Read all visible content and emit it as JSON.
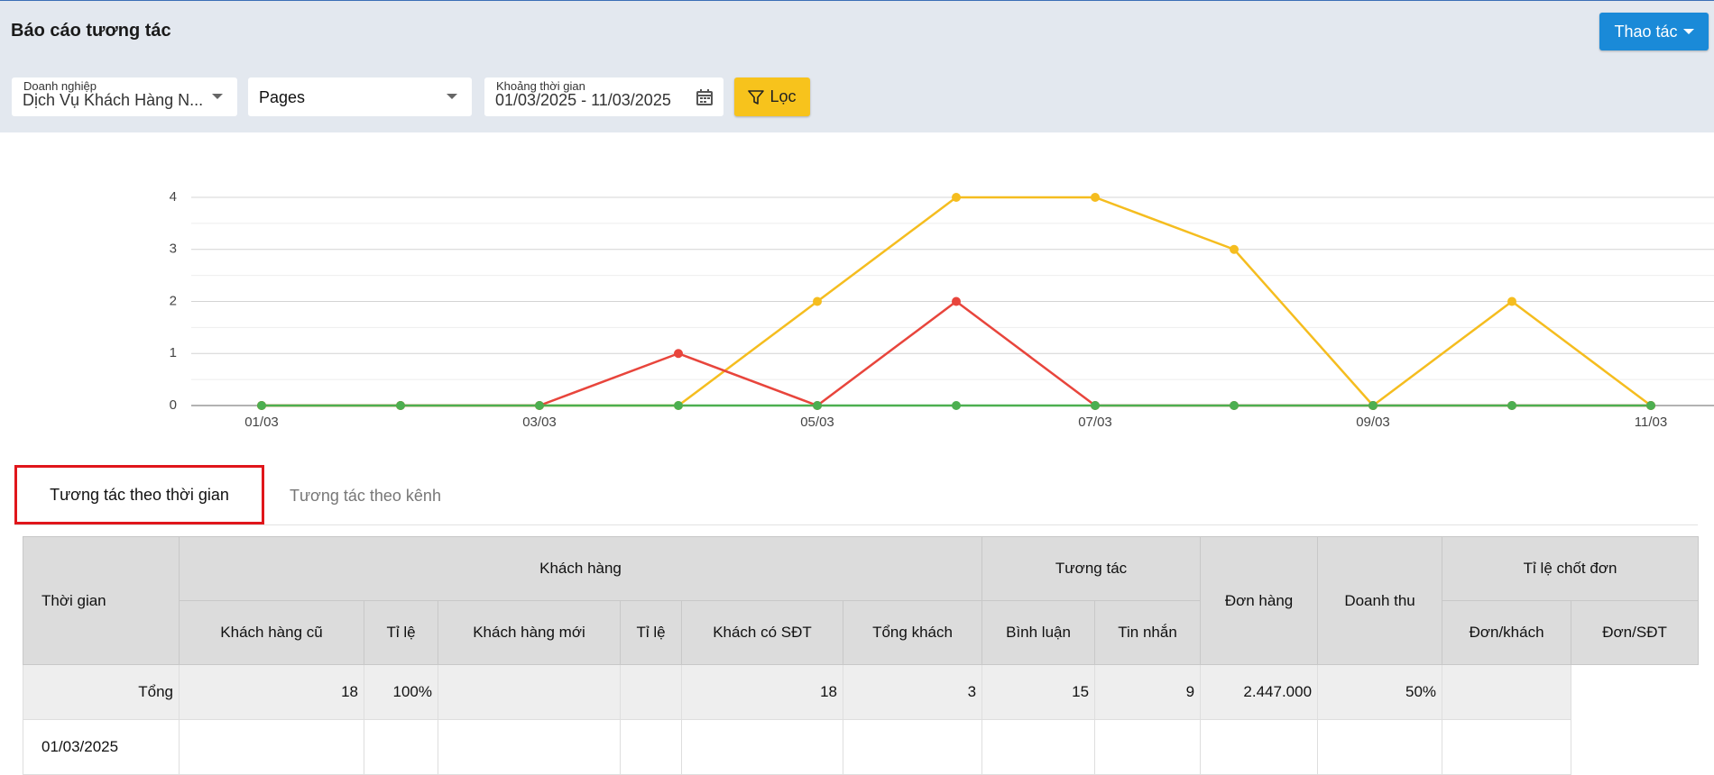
{
  "header": {
    "title": "Báo cáo tương tác",
    "action_button": "Thao tác"
  },
  "filters": {
    "company": {
      "label": "Doanh nghiệp",
      "value": "Dịch Vụ Khách Hàng N..."
    },
    "source": {
      "value": "Pages"
    },
    "date_range": {
      "label": "Khoảng thời gian",
      "value": "01/03/2025 - 11/03/2025"
    },
    "filter_button": "Lọc"
  },
  "chart_data": {
    "type": "line",
    "categories": [
      "01/03",
      null,
      "03/03",
      null,
      "05/03",
      null,
      "07/03",
      null,
      "09/03",
      null,
      "11/03"
    ],
    "series": [
      {
        "color": "#f5bd1f",
        "values": [
          0,
          0,
          0,
          0,
          2,
          4,
          4,
          3,
          0,
          2,
          0
        ]
      },
      {
        "color": "#e8453c",
        "values": [
          0,
          0,
          0,
          1,
          0,
          2,
          0,
          0,
          0,
          0,
          0
        ]
      },
      {
        "color": "#4caf50",
        "values": [
          0,
          0,
          0,
          0,
          0,
          0,
          0,
          0,
          0,
          0,
          0
        ]
      }
    ],
    "ylim": [
      0,
      4
    ],
    "yticks": [
      0,
      1,
      2,
      3,
      4
    ],
    "grid": true
  },
  "tabs": [
    "Tương tác theo thời gian",
    "Tương tác theo kênh"
  ],
  "table": {
    "groups": [
      "Thời gian",
      "Khách hàng",
      "Tương tác",
      "Đơn hàng",
      "Doanh thu",
      "Tỉ lệ chốt đơn"
    ],
    "subheaders": [
      "Khách hàng cũ",
      "Tỉ lệ",
      "Khách hàng mới",
      "Tỉ lệ",
      "Khách có SĐT",
      "Tổng khách",
      "Bình luận",
      "Tin nhắn",
      "Đơn/khách",
      "Đơn/SĐT"
    ],
    "rows": [
      [
        "Tổng",
        "18",
        "100%",
        null,
        null,
        "18",
        "3",
        "15",
        "9",
        "2.447.000",
        "50%",
        null
      ],
      [
        "01/03/2025",
        null,
        null,
        null,
        null,
        null,
        null,
        null,
        null,
        null,
        null,
        null
      ]
    ]
  }
}
